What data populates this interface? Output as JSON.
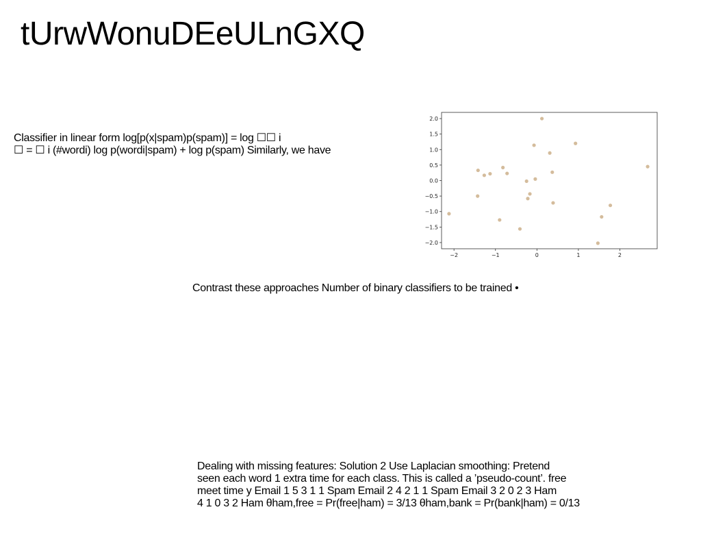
{
  "slide": {
    "title": "tUrwWonuDEeULnGXQ",
    "text_classifier": [
      "Classifier in linear form log[p(x|spam)p(spam)] = log ☐☐ i",
      "☐ = ☐ i (#wordi) log p(wordi|spam) + log p(spam) Similarly, we have"
    ],
    "text_contrast": "Contrast these approaches Number of binary classifiers to be trained •",
    "text_missing": [
      "Dealing with missing features: Solution 2 Use Laplacian smoothing: Pretend",
      "seen each word 1 extra time for each class. This is called a ’pseudo-count’. free",
      "meet time y Email 1 5 3 1 1 Spam Email 2 4 2 1 1 Spam Email 3 2 0 2 3 Ham",
      "4 1 0 3 2 Ham θham,free = Pr(free|ham) = 3/13 θham,bank = Pr(bank|ham) = 0/13"
    ]
  },
  "chart_data": {
    "type": "scatter",
    "title": "",
    "xlabel": "",
    "ylabel": "",
    "xlim": [
      -2.3,
      2.9
    ],
    "ylim": [
      -2.2,
      2.2
    ],
    "xticks": [
      -2,
      -1,
      0,
      1,
      2
    ],
    "yticks": [
      -2.0,
      -1.5,
      -1.0,
      -0.5,
      0.0,
      0.5,
      1.0,
      1.5,
      2.0
    ],
    "xtick_labels": [
      "−2",
      "−1",
      "0",
      "1",
      "2"
    ],
    "ytick_labels": [
      "−2.0",
      "−1.5",
      "−1.0",
      "−0.5",
      "0.0",
      "0.5",
      "1.0",
      "1.5",
      "2.0"
    ],
    "grid": false,
    "point_color": "#d4bc9c",
    "points": [
      {
        "x": 0.12,
        "y": 2.0
      },
      {
        "x": 0.93,
        "y": 1.2
      },
      {
        "x": -0.07,
        "y": 1.14
      },
      {
        "x": 0.31,
        "y": 0.89
      },
      {
        "x": 2.67,
        "y": 0.45
      },
      {
        "x": -0.82,
        "y": 0.42
      },
      {
        "x": -1.42,
        "y": 0.33
      },
      {
        "x": 0.37,
        "y": 0.27
      },
      {
        "x": -0.72,
        "y": 0.23
      },
      {
        "x": -1.13,
        "y": 0.22
      },
      {
        "x": -1.27,
        "y": 0.17
      },
      {
        "x": -0.04,
        "y": 0.05
      },
      {
        "x": -0.25,
        "y": -0.02
      },
      {
        "x": -0.17,
        "y": -0.43
      },
      {
        "x": -1.43,
        "y": -0.5
      },
      {
        "x": -0.22,
        "y": -0.58
      },
      {
        "x": 0.39,
        "y": -0.72
      },
      {
        "x": 1.77,
        "y": -0.8
      },
      {
        "x": -2.12,
        "y": -1.07
      },
      {
        "x": 1.56,
        "y": -1.17
      },
      {
        "x": -0.9,
        "y": -1.27
      },
      {
        "x": -0.41,
        "y": -1.56
      },
      {
        "x": 1.47,
        "y": -2.02
      }
    ]
  }
}
